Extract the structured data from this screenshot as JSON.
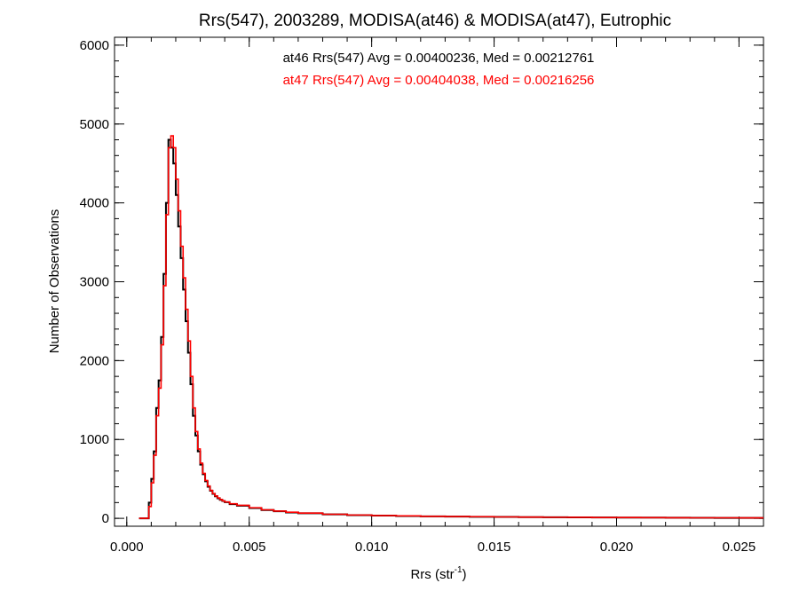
{
  "chart_data": {
    "type": "line",
    "title": "Rrs(547), 2003289, MODISA(at46) & MODISA(at47), Eutrophic",
    "xlabel": "Rrs (str",
    "xlabel_sup": "-1",
    "xlabel_close": ")",
    "ylabel": "Number of Observations",
    "xlim": [
      -0.0005,
      0.026
    ],
    "ylim": [
      -100,
      6100
    ],
    "xticks": [
      0.0,
      0.005,
      0.01,
      0.015,
      0.02,
      0.025
    ],
    "xtick_labels": [
      "0.000",
      "0.005",
      "0.010",
      "0.015",
      "0.020",
      "0.025"
    ],
    "yticks": [
      0,
      1000,
      2000,
      3000,
      4000,
      5000,
      6000
    ],
    "ytick_labels": [
      "0",
      "1000",
      "2000",
      "3000",
      "4000",
      "5000",
      "6000"
    ],
    "grid": false,
    "legend_placement": "top-center",
    "bin_width": 0.0001,
    "series": [
      {
        "name": "at46",
        "color": "#000000",
        "label": "at46 Rrs(547) Avg = 0.00400236, Med = 0.00212761",
        "x": [
          0.0005,
          0.0008,
          0.0009,
          0.001,
          0.0011,
          0.0012,
          0.0013,
          0.0014,
          0.0015,
          0.0016,
          0.0017,
          0.0018,
          0.0019,
          0.002,
          0.0021,
          0.0022,
          0.0023,
          0.0024,
          0.0025,
          0.0026,
          0.0027,
          0.0028,
          0.0029,
          0.003,
          0.0031,
          0.0032,
          0.0033,
          0.0034,
          0.0035,
          0.0036,
          0.0037,
          0.0038,
          0.0039,
          0.004,
          0.0042,
          0.0045,
          0.005,
          0.0055,
          0.006,
          0.0065,
          0.007,
          0.008,
          0.009,
          0.01,
          0.011,
          0.012,
          0.013,
          0.014,
          0.015,
          0.016,
          0.017,
          0.018,
          0.019,
          0.02,
          0.021,
          0.022,
          0.023,
          0.024,
          0.025,
          0.026
        ],
        "y": [
          0,
          0,
          200,
          500,
          850,
          1400,
          1750,
          2300,
          3100,
          4000,
          4800,
          4700,
          4500,
          4100,
          3700,
          3300,
          2900,
          2500,
          2100,
          1700,
          1300,
          1050,
          850,
          680,
          560,
          470,
          400,
          350,
          310,
          280,
          255,
          235,
          220,
          205,
          180,
          160,
          130,
          105,
          90,
          75,
          65,
          50,
          40,
          35,
          30,
          25,
          22,
          20,
          18,
          15,
          14,
          12,
          11,
          10,
          9,
          8,
          7,
          6,
          6,
          5
        ]
      },
      {
        "name": "at47",
        "color": "#ff0000",
        "label": "at47 Rrs(547) Avg = 0.00404038, Med = 0.00216256",
        "x": [
          0.0005,
          0.0008,
          0.0009,
          0.001,
          0.0011,
          0.0012,
          0.0013,
          0.0014,
          0.0015,
          0.0016,
          0.0017,
          0.0018,
          0.0019,
          0.002,
          0.0021,
          0.0022,
          0.0023,
          0.0024,
          0.0025,
          0.0026,
          0.0027,
          0.0028,
          0.0029,
          0.003,
          0.0031,
          0.0032,
          0.0033,
          0.0034,
          0.0035,
          0.0036,
          0.0037,
          0.0038,
          0.0039,
          0.004,
          0.0042,
          0.0045,
          0.005,
          0.0055,
          0.006,
          0.0065,
          0.007,
          0.008,
          0.009,
          0.01,
          0.011,
          0.012,
          0.013,
          0.014,
          0.015,
          0.016,
          0.017,
          0.018,
          0.019,
          0.02,
          0.021,
          0.022,
          0.023,
          0.024,
          0.025,
          0.026
        ],
        "y": [
          0,
          0,
          150,
          450,
          800,
          1300,
          1650,
          2200,
          2950,
          3850,
          4700,
          4850,
          4700,
          4300,
          3900,
          3450,
          3050,
          2650,
          2250,
          1800,
          1400,
          1100,
          880,
          700,
          570,
          480,
          410,
          355,
          315,
          285,
          260,
          240,
          222,
          208,
          185,
          165,
          135,
          108,
          92,
          78,
          67,
          52,
          42,
          36,
          31,
          26,
          23,
          21,
          18,
          16,
          14,
          13,
          11,
          10,
          9,
          8,
          7,
          7,
          6,
          5
        ]
      }
    ]
  }
}
